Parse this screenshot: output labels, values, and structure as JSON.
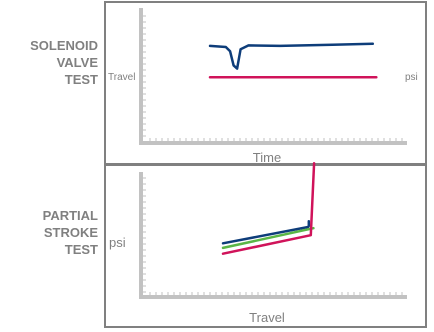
{
  "panels": {
    "top": {
      "label": "SOLENOID\nVALVE\nTEST"
    },
    "bottom": {
      "label": "PARTIAL\nSTROKE\nTEST"
    }
  },
  "colors": {
    "frame": "#808080",
    "axis": "#c2c2c2",
    "navy": "#0e3d7a",
    "red": "#d0135a",
    "green": "#5ab646",
    "text": "#808080"
  },
  "chart_data": [
    {
      "type": "line",
      "xlabel": "Time",
      "ylabel": "Travel",
      "y2label": "psi",
      "xlim": [
        0,
        10
      ],
      "ylim": [
        0,
        10
      ],
      "series": [
        {
          "color": "#0e3d7a",
          "x": [
            0,
            0.9,
            1.15,
            1.35,
            1.55,
            1.75,
            2.2,
            4,
            7,
            9.3
          ],
          "y": [
            7.6,
            7.5,
            7.1,
            5.8,
            5.5,
            7.3,
            7.65,
            7.6,
            7.7,
            7.8
          ]
        },
        {
          "color": "#d0135a",
          "x": [
            0,
            9.5
          ],
          "y": [
            4.7,
            4.7
          ]
        }
      ]
    },
    {
      "type": "line",
      "xlabel": "Travel",
      "ylabel": "psi",
      "xlim": [
        0,
        10
      ],
      "ylim": [
        0,
        10
      ],
      "series": [
        {
          "color": "#0e3d7a",
          "x": [
            0,
            6.4,
            6.45,
            6.45
          ],
          "y": [
            4.2,
            5.6,
            5.7,
            6.1
          ]
        },
        {
          "color": "#5ab646",
          "x": [
            0,
            6.8
          ],
          "y": [
            3.8,
            5.5
          ]
        },
        {
          "color": "#d0135a",
          "x": [
            0,
            6.6,
            6.85
          ],
          "y": [
            3.3,
            4.9,
            11.1
          ]
        }
      ]
    }
  ]
}
